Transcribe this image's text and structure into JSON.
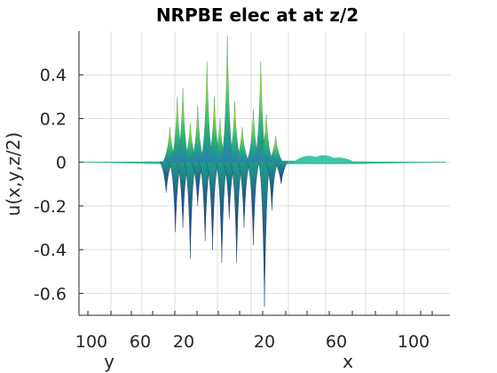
{
  "chart_data": {
    "type": "surface",
    "title": "NRPBE elec at at z/2",
    "zlabel": "u(x,y,z/2)",
    "xlabel": "x",
    "ylabel": "y",
    "zlim": [
      -0.7,
      0.6
    ],
    "z_ticks": [
      0.4,
      0.2,
      0,
      -0.2,
      -0.4,
      -0.6
    ],
    "z_tick_labels": [
      "0.4",
      "0.2",
      "0",
      "-0.2",
      "-0.4",
      "-0.6"
    ],
    "y_tick_labels": [
      "100",
      "60",
      "20"
    ],
    "x_tick_labels": [
      "20",
      "60",
      "100"
    ],
    "grid": true,
    "colormap": [
      "#2c7fb8",
      "#1f9e89",
      "#35b779",
      "#6ece58",
      "#b5de2b",
      "#fde725"
    ],
    "peaks": [
      {
        "pos": 0.245,
        "z": 0.16
      },
      {
        "pos": 0.265,
        "z": 0.3
      },
      {
        "pos": 0.28,
        "z": 0.34
      },
      {
        "pos": 0.3,
        "z": 0.18
      },
      {
        "pos": 0.32,
        "z": 0.26
      },
      {
        "pos": 0.345,
        "z": 0.46
      },
      {
        "pos": 0.365,
        "z": 0.3
      },
      {
        "pos": 0.38,
        "z": 0.2
      },
      {
        "pos": 0.4,
        "z": 0.58
      },
      {
        "pos": 0.42,
        "z": 0.28
      },
      {
        "pos": 0.44,
        "z": 0.16
      },
      {
        "pos": 0.47,
        "z": 0.24
      },
      {
        "pos": 0.49,
        "z": 0.46
      },
      {
        "pos": 0.505,
        "z": 0.22
      },
      {
        "pos": 0.53,
        "z": 0.12
      }
    ],
    "troughs": [
      {
        "pos": 0.235,
        "z": -0.14
      },
      {
        "pos": 0.26,
        "z": -0.32
      },
      {
        "pos": 0.28,
        "z": -0.3
      },
      {
        "pos": 0.3,
        "z": -0.44
      },
      {
        "pos": 0.32,
        "z": -0.2
      },
      {
        "pos": 0.34,
        "z": -0.36
      },
      {
        "pos": 0.36,
        "z": -0.4
      },
      {
        "pos": 0.385,
        "z": -0.46
      },
      {
        "pos": 0.405,
        "z": -0.26
      },
      {
        "pos": 0.425,
        "z": -0.46
      },
      {
        "pos": 0.445,
        "z": -0.3
      },
      {
        "pos": 0.47,
        "z": -0.38
      },
      {
        "pos": 0.5,
        "z": -0.66
      },
      {
        "pos": 0.52,
        "z": -0.22
      },
      {
        "pos": 0.545,
        "z": -0.1
      }
    ],
    "ridges": [
      {
        "pos": 0.62,
        "z": 0.035
      },
      {
        "pos": 0.66,
        "z": 0.04
      },
      {
        "pos": 0.7,
        "z": 0.02
      }
    ]
  }
}
